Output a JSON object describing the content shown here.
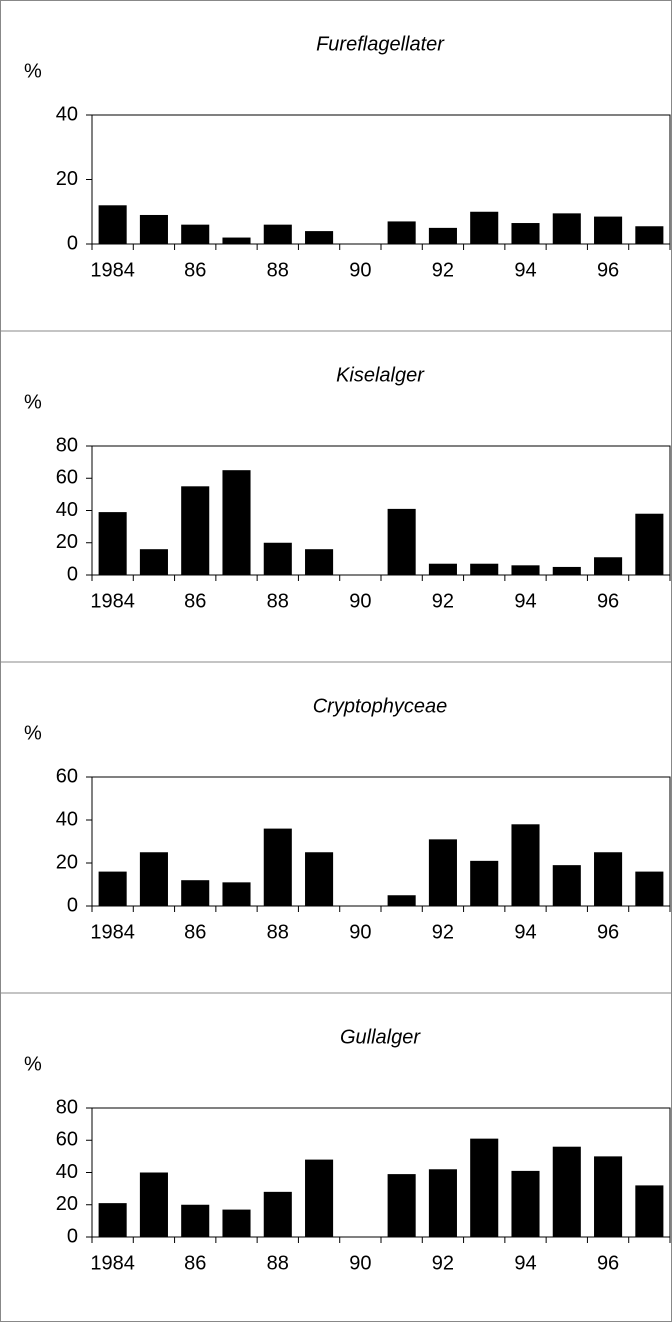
{
  "chart_data": [
    {
      "type": "bar",
      "title": "Fureflagellater",
      "ylabel": "%",
      "categories": [
        "1984",
        null,
        "86",
        null,
        "88",
        null,
        "90",
        null,
        "92",
        null,
        "94",
        null,
        "96",
        null
      ],
      "values": [
        12,
        9,
        6,
        2,
        6,
        4,
        null,
        7,
        5,
        10,
        6.5,
        9.5,
        8.5,
        5.5
      ],
      "color": "#000000",
      "ylim": [
        0,
        40
      ],
      "yticks": [
        0,
        20,
        40
      ]
    },
    {
      "type": "bar",
      "title": "Kiselalger",
      "ylabel": "%",
      "categories": [
        "1984",
        null,
        "86",
        null,
        "88",
        null,
        "90",
        null,
        "92",
        null,
        "94",
        null,
        "96",
        null
      ],
      "values": [
        39,
        16,
        55,
        65,
        20,
        16,
        null,
        41,
        7,
        7,
        6,
        5,
        11,
        38
      ],
      "color": "#000000",
      "ylim": [
        0,
        80
      ],
      "yticks": [
        0,
        20,
        40,
        60,
        80
      ]
    },
    {
      "type": "bar",
      "title": "Cryptophyceae",
      "ylabel": "%",
      "categories": [
        "1984",
        null,
        "86",
        null,
        "88",
        null,
        "90",
        null,
        "92",
        null,
        "94",
        null,
        "96",
        null
      ],
      "values": [
        16,
        25,
        12,
        11,
        36,
        25,
        null,
        5,
        31,
        21,
        38,
        19,
        25,
        16
      ],
      "color": "#000000",
      "ylim": [
        0,
        60
      ],
      "yticks": [
        0,
        20,
        40,
        60
      ]
    },
    {
      "type": "bar",
      "title": "Gullalger",
      "ylabel": "%",
      "categories": [
        "1984",
        null,
        "86",
        null,
        "88",
        null,
        "90",
        null,
        "92",
        null,
        "94",
        null,
        "96",
        null
      ],
      "values": [
        21,
        40,
        20,
        17,
        28,
        48,
        null,
        39,
        42,
        61,
        41,
        56,
        50,
        32
      ],
      "color": "#000000",
      "ylim": [
        0,
        80
      ],
      "yticks": [
        0,
        20,
        40,
        60,
        80
      ]
    }
  ]
}
